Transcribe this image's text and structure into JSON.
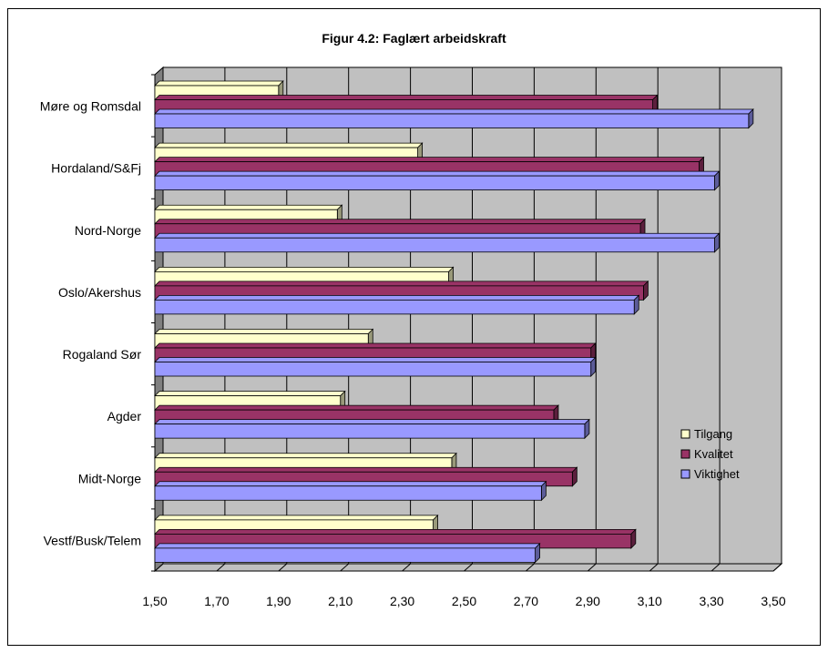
{
  "chart_data": {
    "type": "bar",
    "orientation": "horizontal",
    "title": "Figur 4.2: Faglært arbeidskraft",
    "categories": [
      "Møre og Romsdal",
      "Hordaland/S&Fj",
      "Nord-Norge",
      "Oslo/Akershus",
      "Rogaland Sør",
      "Agder",
      "Midt-Norge",
      "Vestf/Busk/Telem"
    ],
    "series": [
      {
        "name": "Tilgang",
        "color": "#ffffcc",
        "values": [
          1.9,
          2.35,
          2.09,
          2.45,
          2.19,
          2.1,
          2.46,
          2.4
        ]
      },
      {
        "name": "Kvalitet",
        "color": "#993366",
        "values": [
          3.11,
          3.26,
          3.07,
          3.08,
          2.91,
          2.79,
          2.85,
          3.04
        ]
      },
      {
        "name": "Viktighet",
        "color": "#9999ff",
        "values": [
          3.42,
          3.31,
          3.31,
          3.05,
          2.91,
          2.89,
          2.75,
          2.73
        ]
      }
    ],
    "x_ticks": [
      "1,50",
      "1,70",
      "1,90",
      "2,10",
      "2,30",
      "2,50",
      "2,70",
      "2,90",
      "3,10",
      "3,30",
      "3,50"
    ],
    "xlim": [
      1.5,
      3.5
    ],
    "grid": true,
    "legend_position": "right"
  }
}
